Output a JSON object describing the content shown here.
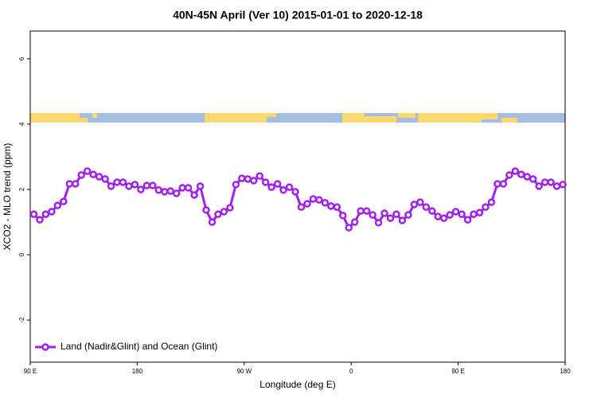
{
  "chart_data": {
    "type": "line",
    "title": "40N-45N April (Ver 10)   2015-01-01 to 2020-12-18",
    "xlabel": "Longitude (deg E)",
    "ylabel": "XCO2 - MLO trend (ppm)",
    "xlim": [
      90,
      540
    ],
    "xticks": [
      {
        "value": 90,
        "label": "90 E"
      },
      180,
      {
        "value": 270,
        "label": "90 W"
      },
      {
        "value": 360,
        "label": "0"
      },
      {
        "value": 450,
        "label": "90 E"
      },
      {
        "value": 540,
        "label": "180"
      }
    ],
    "ylim": [
      -3.29,
      6.85
    ],
    "yticks": [
      -2,
      0,
      2,
      4,
      6
    ],
    "legend": "lower left",
    "x": [
      93,
      98,
      103,
      108,
      113,
      118,
      123,
      128,
      133,
      138,
      143,
      148,
      153,
      158,
      163,
      168,
      173,
      178,
      183,
      188,
      193,
      198,
      203,
      208,
      213,
      218,
      223,
      228,
      233,
      238,
      243,
      248,
      253,
      258,
      263,
      268,
      273,
      278,
      283,
      288,
      293,
      298,
      303,
      308,
      313,
      318,
      323,
      328,
      333,
      338,
      343,
      348,
      353,
      358,
      363,
      368,
      373,
      378,
      383,
      388,
      393,
      398,
      403,
      408,
      413,
      418,
      423,
      428,
      433,
      438,
      443,
      448,
      453,
      458,
      463,
      468,
      473,
      478,
      483,
      488,
      493,
      498,
      503,
      508,
      513,
      518,
      523,
      528,
      533,
      538
    ],
    "series": [
      {
        "name": "Land (Nadir&Glint) and Ocean (Glint)",
        "color": "#a020f0",
        "values": [
          1.24,
          1.07,
          1.24,
          1.32,
          1.51,
          1.63,
          2.17,
          2.17,
          2.44,
          2.56,
          2.46,
          2.39,
          2.32,
          2.1,
          2.22,
          2.22,
          2.1,
          2.15,
          2.0,
          2.12,
          2.12,
          1.98,
          1.93,
          1.95,
          1.88,
          2.05,
          2.05,
          1.83,
          2.1,
          1.37,
          1.0,
          1.24,
          1.32,
          1.44,
          2.15,
          2.34,
          2.32,
          2.27,
          2.41,
          2.22,
          2.07,
          2.17,
          1.98,
          2.07,
          1.93,
          1.46,
          1.56,
          1.71,
          1.68,
          1.59,
          1.49,
          1.46,
          1.2,
          0.83,
          1.0,
          1.34,
          1.34,
          1.22,
          0.98,
          1.27,
          1.12,
          1.24,
          1.05,
          1.22,
          1.54,
          1.61,
          1.46,
          1.34,
          1.17,
          1.12,
          1.22,
          1.32,
          1.24,
          1.07,
          1.24,
          1.29,
          1.46,
          1.61,
          2.17,
          2.17,
          2.44,
          2.56,
          2.46,
          2.39,
          2.32,
          2.1,
          2.22,
          2.22,
          2.1,
          2.15
        ]
      }
    ]
  }
}
